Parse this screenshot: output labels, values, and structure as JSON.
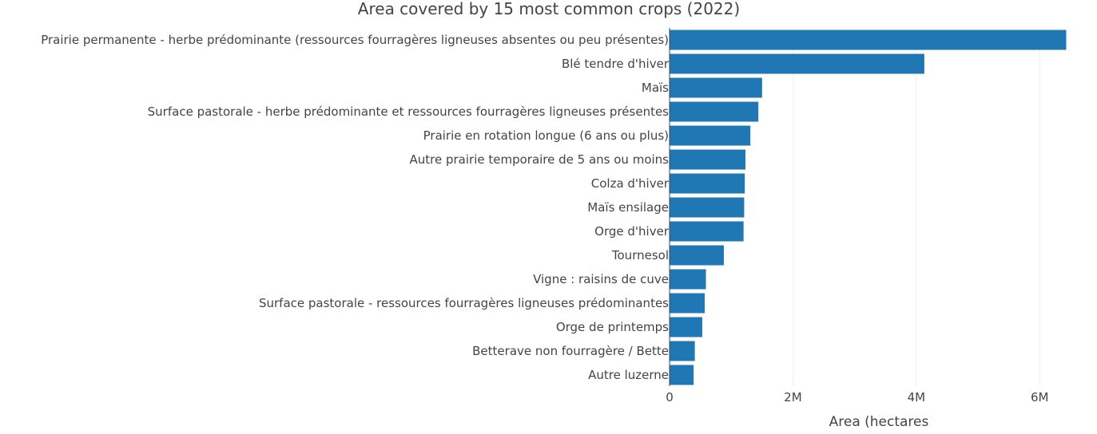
{
  "chart_data": {
    "type": "bar",
    "orientation": "horizontal",
    "title": "Area covered by 15 most common crops (2022)",
    "xlabel": "Area (hectares",
    "ylabel": "",
    "xlim": [
      0,
      6450000
    ],
    "xticks": [
      {
        "value": 0,
        "label": "0"
      },
      {
        "value": 2000000,
        "label": "2M"
      },
      {
        "value": 4000000,
        "label": "4M"
      },
      {
        "value": 6000000,
        "label": "6M"
      }
    ],
    "grid": true,
    "bar_color": "#1f77b4",
    "categories": [
      "Prairie permanente - herbe prédominante (ressources fourragères ligneuses absentes ou peu présentes)",
      "Blé tendre d'hiver",
      "Maïs",
      "Surface pastorale - herbe prédominante et ressources fourragères ligneuses présentes",
      "Prairie en rotation longue (6 ans ou plus)",
      "Autre prairie temporaire de 5 ans ou moins",
      "Colza d'hiver",
      "Maïs ensilage",
      "Orge d'hiver",
      "Tournesol",
      "Vigne : raisins de cuve",
      "Surface pastorale - ressources fourragères ligneuses prédominantes",
      "Orge de printemps",
      "Betterave non fourragère / Bette",
      "Autre luzerne"
    ],
    "values": [
      6430000,
      4130000,
      1500000,
      1440000,
      1310000,
      1230000,
      1220000,
      1210000,
      1200000,
      880000,
      590000,
      570000,
      530000,
      410000,
      390000
    ]
  }
}
